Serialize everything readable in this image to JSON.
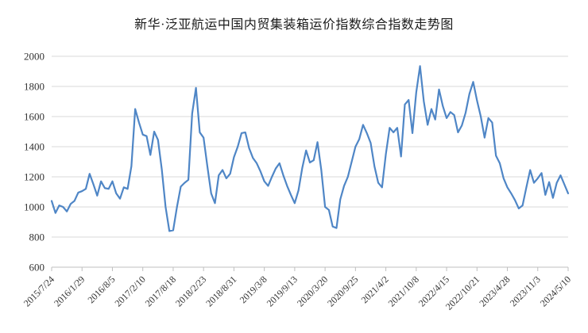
{
  "chart_data": {
    "type": "line",
    "title": "新华·泛亚航运中国内贸集装箱运价指数综合指数走势图",
    "legend": "none",
    "grid": "horizontal",
    "ylim": [
      600,
      2000
    ],
    "y_ticks": [
      600,
      800,
      1000,
      1200,
      1400,
      1600,
      1800,
      2000
    ],
    "x_tick_labels": [
      "2015/7/24",
      "2016/1/29",
      "2016/8/5",
      "2017/2/10",
      "2017/8/18",
      "2018/2/23",
      "2018/8/31",
      "2019/3/8",
      "2019/9/13",
      "2020/3/20",
      "2020/9/25",
      "2021/4/2",
      "2021/10/8",
      "2022/4/15",
      "2022/10/21",
      "2023/4/28",
      "2023/11/3",
      "2024/5/10"
    ],
    "x_tick_rotation": -45,
    "series": [
      {
        "name": "综合指数",
        "color": "#4f86c6",
        "values": [
          1040,
          960,
          1010,
          1000,
          970,
          1020,
          1040,
          1095,
          1105,
          1120,
          1220,
          1150,
          1075,
          1170,
          1125,
          1120,
          1170,
          1090,
          1055,
          1130,
          1120,
          1270,
          1650,
          1560,
          1480,
          1470,
          1345,
          1500,
          1445,
          1250,
          1000,
          840,
          845,
          1000,
          1135,
          1160,
          1180,
          1620,
          1790,
          1495,
          1460,
          1270,
          1090,
          1025,
          1210,
          1245,
          1190,
          1220,
          1330,
          1400,
          1490,
          1495,
          1390,
          1325,
          1290,
          1235,
          1170,
          1140,
          1200,
          1255,
          1290,
          1210,
          1140,
          1080,
          1025,
          1110,
          1260,
          1375,
          1295,
          1310,
          1430,
          1245,
          1000,
          980,
          870,
          860,
          1050,
          1140,
          1200,
          1300,
          1400,
          1450,
          1545,
          1490,
          1425,
          1270,
          1160,
          1130,
          1350,
          1525,
          1495,
          1525,
          1335,
          1680,
          1710,
          1490,
          1760,
          1935,
          1700,
          1545,
          1650,
          1580,
          1780,
          1670,
          1590,
          1630,
          1610,
          1495,
          1540,
          1625,
          1750,
          1830,
          1707,
          1600,
          1460,
          1590,
          1560,
          1340,
          1290,
          1190,
          1130,
          1090,
          1045,
          990,
          1010,
          1130,
          1245,
          1160,
          1190,
          1225,
          1080,
          1165,
          1060,
          1160,
          1210,
          1150,
          1090
        ]
      }
    ],
    "colors": {
      "line": "#4f86c6",
      "gridline": "#d9d9d9",
      "axis": "#bfbfbf",
      "tick_text": "#333333",
      "title_text": "#1a1a1a"
    }
  }
}
